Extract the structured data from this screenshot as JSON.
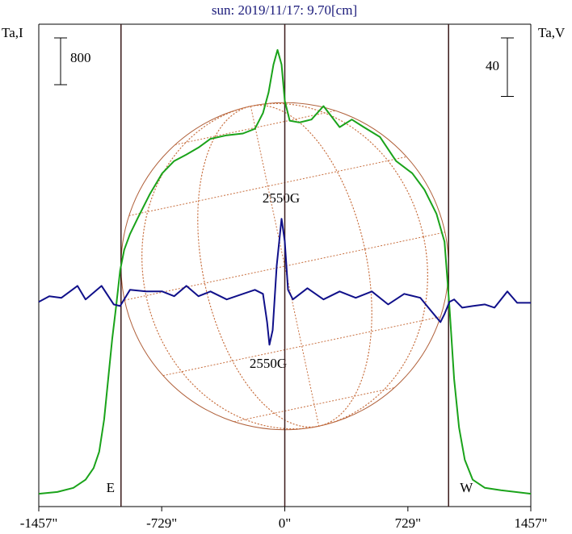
{
  "chart_data": {
    "type": "line",
    "title": "sun: 2019/11/17: 9.70[cm]",
    "ylabel": "Ta,I",
    "y2label": "Ta,V",
    "xlim": [
      -1457,
      1457
    ],
    "xticks": [
      {
        "value": -1457,
        "label": "-1457\""
      },
      {
        "value": -729,
        "label": "-729\""
      },
      {
        "value": 0,
        "label": "0\""
      },
      {
        "value": 729,
        "label": "729\""
      },
      {
        "value": 1457,
        "label": "1457\""
      }
    ],
    "ylim": [
      0,
      8250
    ],
    "y2lim": [
      -140,
      190
    ],
    "scale_bars": [
      {
        "value": 800,
        "axis": "y"
      },
      {
        "value": 40,
        "axis": "y2"
      }
    ],
    "limbs": [
      {
        "value": -970,
        "label": "E"
      },
      {
        "value": 970,
        "label": "W"
      }
    ],
    "annotations": [
      "2550G",
      "2550G"
    ],
    "series": [
      {
        "name": "Ta,I",
        "color": "#1aa31a",
        "x": [
          -1457,
          -1347,
          -1252,
          -1180,
          -1132,
          -1099,
          -1070,
          -1046,
          -1022,
          -999,
          -975,
          -951,
          -917,
          -870,
          -798,
          -726,
          -655,
          -583,
          -511,
          -440,
          -344,
          -248,
          -177,
          -129,
          -96,
          -67,
          -43,
          -19,
          0,
          29,
          86,
          158,
          229,
          277,
          325,
          397,
          468,
          564,
          659,
          755,
          827,
          898,
          946,
          975,
          1003,
          1032,
          1066,
          1113,
          1185,
          1280,
          1457
        ],
        "values": [
          220,
          250,
          320,
          460,
          660,
          940,
          1490,
          2180,
          2870,
          3420,
          4040,
          4390,
          4660,
          4940,
          5350,
          5700,
          5910,
          6020,
          6140,
          6290,
          6350,
          6380,
          6460,
          6730,
          7080,
          7560,
          7810,
          7560,
          6940,
          6600,
          6570,
          6620,
          6850,
          6670,
          6490,
          6620,
          6490,
          6320,
          5910,
          5700,
          5420,
          5010,
          4530,
          3420,
          2180,
          1350,
          800,
          460,
          320,
          280,
          220
        ]
      },
      {
        "name": "Ta,V",
        "color": "#10108a",
        "axis": "y2",
        "x": [
          -1457,
          -1395,
          -1323,
          -1228,
          -1180,
          -1085,
          -1013,
          -975,
          -917,
          -822,
          -726,
          -655,
          -583,
          -511,
          -440,
          -344,
          -248,
          -177,
          -129,
          -105,
          -91,
          -72,
          -48,
          -19,
          0,
          19,
          48,
          134,
          229,
          325,
          420,
          516,
          612,
          707,
          803,
          874,
          922,
          946,
          975,
          1003,
          1051,
          1113,
          1185,
          1242,
          1318,
          1376,
          1457
        ],
        "values": [
          0,
          3.9,
          2.8,
          11,
          1.7,
          11,
          -1.7,
          -2.8,
          8.3,
          7.2,
          7.2,
          3.9,
          11,
          3.9,
          7.2,
          1.7,
          5.5,
          8.3,
          5.5,
          -13.8,
          -29.3,
          -19.3,
          24.8,
          56.9,
          41.4,
          8.3,
          1.7,
          9.4,
          1.7,
          7.2,
          2.8,
          7.2,
          -1.7,
          5.5,
          2.8,
          -7.2,
          -13.8,
          -8.3,
          0,
          1.7,
          -3.9,
          -2.8,
          -1.7,
          -3.9,
          7.2,
          -0.6,
          -0.6
        ]
      }
    ]
  }
}
